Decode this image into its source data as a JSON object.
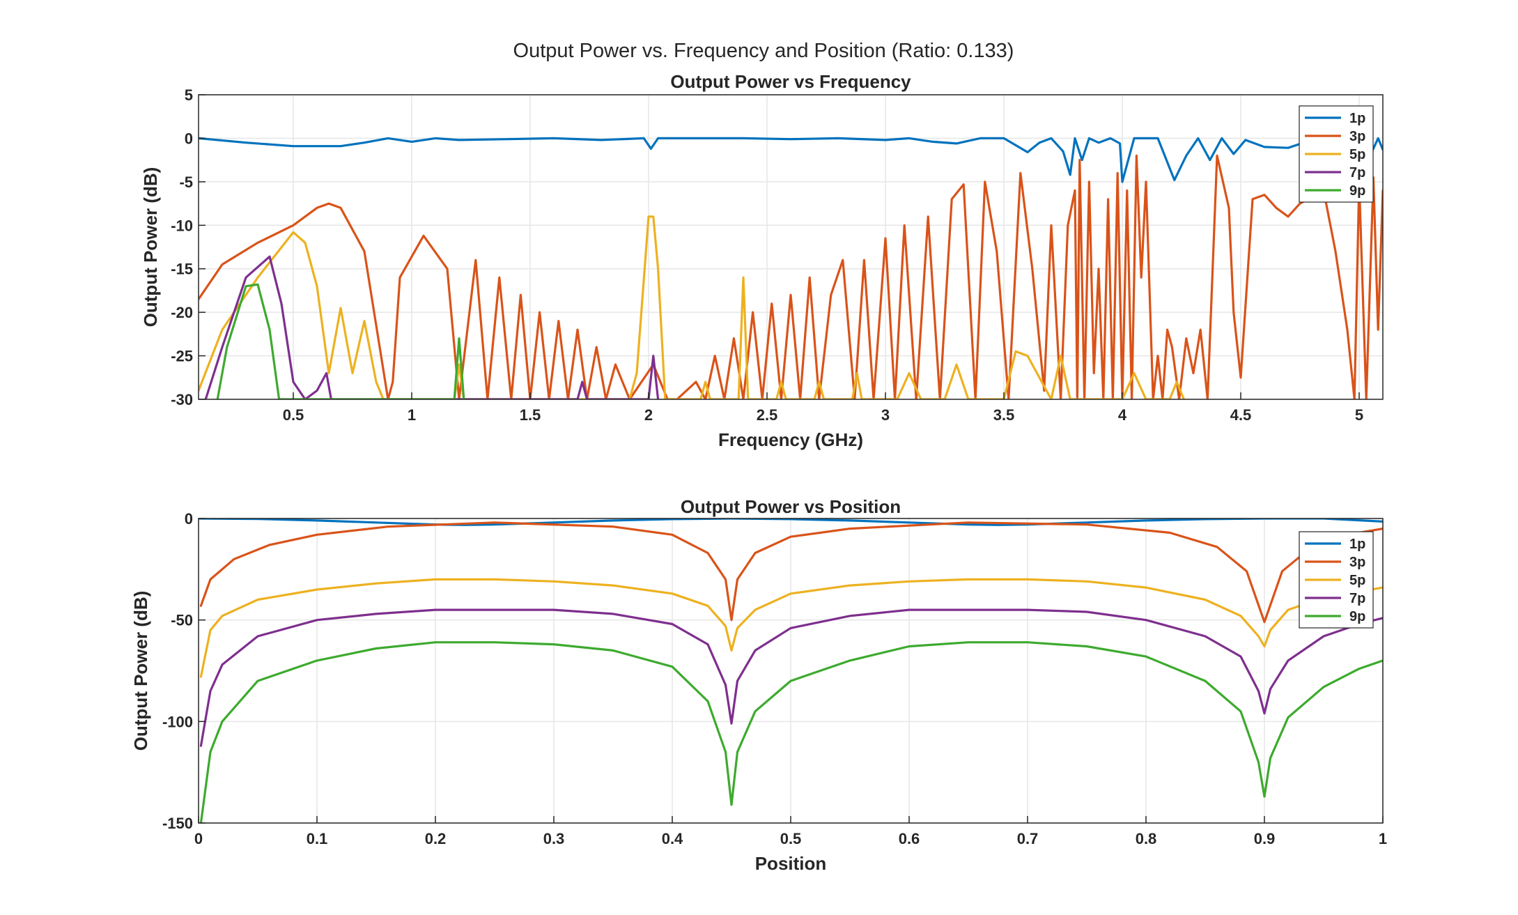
{
  "figure_title": "Output Power vs. Frequency and Position (Ratio: 0.133)",
  "colors": {
    "1p": "#0072BD",
    "3p": "#D95319",
    "5p": "#EDB120",
    "7p": "#7E2F8E",
    "9p": "#3DAA2E"
  },
  "chart_data": [
    {
      "type": "line",
      "title": "Output Power vs Frequency",
      "xlabel": "Frequency (GHz)",
      "ylabel": "Output Power (dB)",
      "xlim": [
        0.1,
        5.1
      ],
      "ylim": [
        -30,
        5
      ],
      "xticks": [
        0.5,
        1,
        1.5,
        2,
        2.5,
        3,
        3.5,
        4,
        4.5,
        5
      ],
      "xtick_labels": [
        "0.5",
        "1",
        "1.5",
        "2",
        "2.5",
        "3",
        "3.5",
        "4",
        "4.5",
        "5"
      ],
      "yticks": [
        5,
        0,
        -5,
        -10,
        -15,
        -20,
        -25,
        -30
      ],
      "ytick_labels": [
        "5",
        "0",
        "-5",
        "-10",
        "-15",
        "-20",
        "-25",
        "-30"
      ],
      "grid": true,
      "legend_position": "top-right",
      "series": [
        {
          "name": "1p",
          "x": [
            0.1,
            0.3,
            0.5,
            0.7,
            0.8,
            0.9,
            1.0,
            1.1,
            1.2,
            1.4,
            1.6,
            1.8,
            1.98,
            2.01,
            2.04,
            2.2,
            2.4,
            2.6,
            2.8,
            3.0,
            3.1,
            3.2,
            3.3,
            3.4,
            3.5,
            3.55,
            3.6,
            3.65,
            3.7,
            3.75,
            3.78,
            3.8,
            3.83,
            3.86,
            3.9,
            3.95,
            3.99,
            4.0,
            4.05,
            4.1,
            4.15,
            4.22,
            4.27,
            4.32,
            4.37,
            4.42,
            4.47,
            4.52,
            4.6,
            4.7,
            4.8,
            4.9,
            5.0,
            5.05,
            5.08,
            5.1
          ],
          "y": [
            0,
            -0.5,
            -0.9,
            -0.9,
            -0.5,
            0,
            -0.4,
            0,
            -0.2,
            -0.1,
            0,
            -0.2,
            0,
            -1.2,
            0,
            0,
            0,
            -0.1,
            0,
            -0.2,
            0,
            -0.4,
            -0.6,
            0,
            0,
            -0.8,
            -1.6,
            -0.5,
            0,
            -1.5,
            -4.2,
            0,
            -2.5,
            0,
            -0.5,
            0,
            -0.6,
            -5,
            0,
            0,
            0,
            -4.8,
            -2,
            0,
            -2.5,
            0,
            -1.8,
            -0.2,
            -1,
            -1.1,
            -0.2,
            0,
            0,
            -1.8,
            0,
            -1.3
          ]
        },
        {
          "name": "3p",
          "x": [
            0.1,
            0.2,
            0.35,
            0.5,
            0.6,
            0.65,
            0.7,
            0.8,
            0.9,
            0.92,
            0.95,
            1.05,
            1.15,
            1.2,
            1.27,
            1.32,
            1.37,
            1.42,
            1.46,
            1.5,
            1.54,
            1.58,
            1.62,
            1.66,
            1.7,
            1.74,
            1.78,
            1.82,
            1.86,
            1.92,
            2.02,
            2.08,
            2.12,
            2.2,
            2.24,
            2.28,
            2.32,
            2.36,
            2.4,
            2.44,
            2.48,
            2.52,
            2.56,
            2.6,
            2.64,
            2.68,
            2.72,
            2.77,
            2.82,
            2.87,
            2.91,
            2.95,
            3.0,
            3.04,
            3.08,
            3.13,
            3.18,
            3.23,
            3.28,
            3.33,
            3.38,
            3.42,
            3.47,
            3.52,
            3.57,
            3.62,
            3.67,
            3.7,
            3.74,
            3.77,
            3.8,
            3.81,
            3.82,
            3.84,
            3.86,
            3.88,
            3.9,
            3.92,
            3.94,
            3.96,
            3.98,
            4.0,
            4.02,
            4.04,
            4.06,
            4.08,
            4.1,
            4.13,
            4.15,
            4.17,
            4.19,
            4.21,
            4.24,
            4.27,
            4.3,
            4.33,
            4.36,
            4.4,
            4.45,
            4.47,
            4.5,
            4.55,
            4.6,
            4.65,
            4.7,
            4.75,
            4.85,
            4.9,
            4.95,
            4.98,
            5.0,
            5.03,
            5.06,
            5.08,
            5.1
          ],
          "y": [
            -18.5,
            -14.5,
            -12,
            -10,
            -8,
            -7.5,
            -8,
            -13,
            -30,
            -28,
            -16,
            -11.2,
            -15,
            -30,
            -14,
            -30,
            -16,
            -30,
            -18,
            -30,
            -20,
            -30,
            -21,
            -30,
            -22,
            -30,
            -24,
            -30,
            -26,
            -30,
            -26,
            -30,
            -30,
            -28,
            -30,
            -25,
            -30,
            -23,
            -30,
            -20,
            -30,
            -19,
            -30,
            -18,
            -30,
            -16,
            -30,
            -18,
            -14,
            -30,
            -14,
            -30,
            -11.5,
            -30,
            -10,
            -30,
            -9,
            -30,
            -7,
            -5.3,
            -30,
            -5,
            -13,
            -30,
            -4,
            -15,
            -29,
            -10,
            -30,
            -10,
            -6,
            -30,
            -2.5,
            -30,
            -5,
            -27,
            -15,
            -30,
            -7,
            -30,
            -4,
            -30,
            -6,
            -30,
            -2,
            -16,
            -5,
            -30,
            -25,
            -30,
            -22,
            -24,
            -30,
            -23,
            -27,
            -22,
            -30,
            -2,
            -8,
            -20,
            -27.5,
            -7,
            -6.5,
            -8,
            -9,
            -7.5,
            -6,
            -13,
            -22,
            -30,
            -5,
            -30,
            -4.5,
            -22,
            -6
          ]
        },
        {
          "name": "5p",
          "x": [
            0.1,
            0.2,
            0.35,
            0.5,
            0.55,
            0.6,
            0.65,
            0.7,
            0.75,
            0.8,
            0.85,
            0.88,
            1.18,
            1.2,
            1.22,
            1.92,
            1.95,
            2.0,
            2.02,
            2.04,
            2.07,
            2.1,
            2.22,
            2.24,
            2.26,
            2.38,
            2.4,
            2.42,
            2.54,
            2.56,
            2.58,
            2.7,
            2.72,
            2.74,
            2.86,
            2.88,
            2.9,
            3.05,
            3.1,
            3.15,
            3.25,
            3.3,
            3.35,
            3.5,
            3.55,
            3.6,
            3.7,
            3.74,
            3.78,
            4.0,
            4.05,
            4.1,
            4.2,
            4.23,
            4.26
          ],
          "y": [
            -29,
            -22,
            -16,
            -10.8,
            -12,
            -17,
            -27,
            -19.5,
            -27,
            -21,
            -28,
            -30,
            -30,
            -26,
            -30,
            -30,
            -27,
            -9,
            -9,
            -15,
            -30,
            -30,
            -30,
            -28,
            -30,
            -30,
            -16,
            -30,
            -30,
            -28,
            -30,
            -30,
            -28,
            -30,
            -30,
            -27,
            -30,
            -30,
            -27,
            -30,
            -30,
            -26,
            -30,
            -30,
            -24.5,
            -25,
            -30,
            -25,
            -30,
            -30,
            -27,
            -30,
            -30,
            -28,
            -30
          ]
        },
        {
          "name": "7p",
          "x": [
            0.13,
            0.2,
            0.3,
            0.4,
            0.45,
            0.5,
            0.55,
            0.6,
            0.62,
            0.64,
            0.66,
            1.7,
            1.72,
            1.74,
            2.0,
            2.02,
            2.04
          ],
          "y": [
            -30,
            -24,
            -16,
            -13.6,
            -19,
            -28,
            -30,
            -29,
            -28,
            -27,
            -30,
            -30,
            -28,
            -30,
            -30,
            -25,
            -30
          ]
        },
        {
          "name": "9p",
          "x": [
            0.18,
            0.22,
            0.3,
            0.35,
            0.4,
            0.44,
            1.18,
            1.2,
            1.22
          ],
          "y": [
            -30,
            -24,
            -17,
            -16.8,
            -22,
            -30,
            -30,
            -23,
            -30
          ]
        }
      ]
    },
    {
      "type": "line",
      "title": "Output Power vs Position",
      "xlabel": "Position",
      "ylabel": "Output Power (dB)",
      "xlim": [
        0,
        1
      ],
      "ylim": [
        -150,
        0
      ],
      "xticks": [
        0,
        0.1,
        0.2,
        0.3,
        0.4,
        0.5,
        0.6,
        0.7,
        0.8,
        0.9,
        1
      ],
      "xtick_labels": [
        "0",
        "0.1",
        "0.2",
        "0.3",
        "0.4",
        "0.5",
        "0.6",
        "0.7",
        "0.8",
        "0.9",
        "1"
      ],
      "yticks": [
        0,
        -50,
        -100,
        -150
      ],
      "ytick_labels": [
        "0",
        "-50",
        "-100",
        "-150"
      ],
      "grid": true,
      "legend_position": "top-right",
      "series": [
        {
          "name": "1p",
          "x": [
            0,
            0.05,
            0.1,
            0.15,
            0.2,
            0.225,
            0.25,
            0.3,
            0.35,
            0.4,
            0.45,
            0.5,
            0.55,
            0.6,
            0.65,
            0.675,
            0.7,
            0.75,
            0.8,
            0.85,
            0.9,
            0.95,
            1.0
          ],
          "y": [
            0,
            -0.2,
            -1,
            -2,
            -3,
            -3.2,
            -3,
            -2,
            -1,
            -0.3,
            0,
            -0.3,
            -1,
            -2,
            -3,
            -3.2,
            -3,
            -2,
            -1,
            -0.3,
            0,
            0,
            -1.5
          ]
        },
        {
          "name": "3p",
          "x": [
            0.002,
            0.01,
            0.03,
            0.06,
            0.1,
            0.16,
            0.25,
            0.35,
            0.4,
            0.43,
            0.445,
            0.45,
            0.455,
            0.47,
            0.5,
            0.55,
            0.65,
            0.75,
            0.82,
            0.86,
            0.885,
            0.9,
            0.915,
            0.94,
            0.97,
            1.0
          ],
          "y": [
            -43,
            -30,
            -20,
            -13,
            -8,
            -4,
            -2,
            -4,
            -8,
            -17,
            -30,
            -50,
            -30,
            -17,
            -9,
            -5,
            -2,
            -3,
            -7,
            -14,
            -26,
            -51,
            -26,
            -14,
            -8,
            -5
          ]
        },
        {
          "name": "5p",
          "x": [
            0.002,
            0.01,
            0.02,
            0.05,
            0.1,
            0.15,
            0.2,
            0.25,
            0.3,
            0.35,
            0.4,
            0.43,
            0.445,
            0.45,
            0.455,
            0.47,
            0.5,
            0.55,
            0.6,
            0.65,
            0.7,
            0.75,
            0.8,
            0.85,
            0.88,
            0.895,
            0.9,
            0.905,
            0.92,
            0.95,
            0.98,
            1.0
          ],
          "y": [
            -78,
            -55,
            -48,
            -40,
            -35,
            -32,
            -30,
            -30,
            -31,
            -33,
            -37,
            -43,
            -53,
            -65,
            -54,
            -45,
            -37,
            -33,
            -31,
            -30,
            -30,
            -31,
            -34,
            -40,
            -48,
            -58,
            -63,
            -55,
            -45,
            -39,
            -36,
            -34
          ]
        },
        {
          "name": "7p",
          "x": [
            0.002,
            0.01,
            0.02,
            0.05,
            0.1,
            0.15,
            0.2,
            0.25,
            0.3,
            0.35,
            0.4,
            0.43,
            0.445,
            0.45,
            0.455,
            0.47,
            0.5,
            0.55,
            0.6,
            0.65,
            0.7,
            0.75,
            0.8,
            0.85,
            0.88,
            0.895,
            0.9,
            0.905,
            0.92,
            0.95,
            0.98,
            1.0
          ],
          "y": [
            -112,
            -85,
            -72,
            -58,
            -50,
            -47,
            -45,
            -45,
            -45,
            -47,
            -52,
            -62,
            -82,
            -101,
            -80,
            -65,
            -54,
            -48,
            -45,
            -45,
            -45,
            -46,
            -50,
            -58,
            -68,
            -85,
            -96,
            -84,
            -70,
            -58,
            -52,
            -49
          ]
        },
        {
          "name": "9p",
          "x": [
            0.002,
            0.01,
            0.02,
            0.05,
            0.1,
            0.15,
            0.2,
            0.25,
            0.3,
            0.35,
            0.4,
            0.43,
            0.445,
            0.45,
            0.455,
            0.47,
            0.5,
            0.55,
            0.6,
            0.65,
            0.7,
            0.75,
            0.8,
            0.85,
            0.88,
            0.895,
            0.9,
            0.905,
            0.92,
            0.95,
            0.98,
            1.0
          ],
          "y": [
            -150,
            -115,
            -100,
            -80,
            -70,
            -64,
            -61,
            -61,
            -62,
            -65,
            -73,
            -90,
            -115,
            -141,
            -115,
            -95,
            -80,
            -70,
            -63,
            -61,
            -61,
            -63,
            -68,
            -80,
            -95,
            -120,
            -137,
            -118,
            -98,
            -83,
            -74,
            -70
          ]
        }
      ]
    }
  ]
}
